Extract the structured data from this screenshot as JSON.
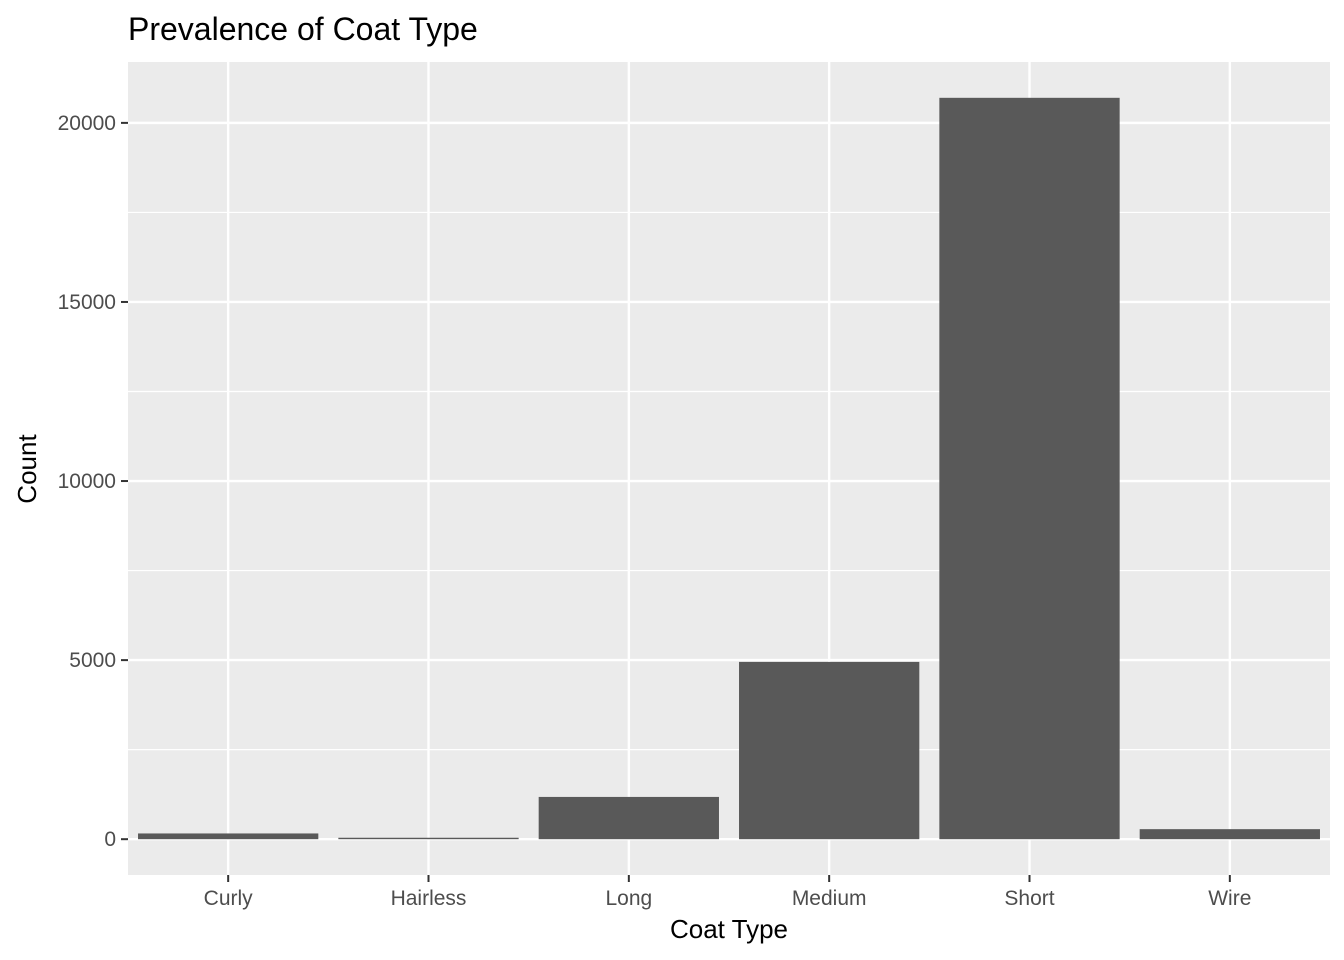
{
  "chart_data": {
    "type": "bar",
    "title": "Prevalence of Coat Type",
    "xlabel": "Coat Type",
    "ylabel": "Count",
    "categories": [
      "Curly",
      "Hairless",
      "Long",
      "Medium",
      "Short",
      "Wire"
    ],
    "values": [
      160,
      40,
      1180,
      4950,
      20700,
      280
    ],
    "ylim": [
      -1000,
      21700
    ],
    "yticks": [
      0,
      5000,
      10000,
      15000,
      20000
    ],
    "ytick_labels": [
      "0",
      "5000",
      "10000",
      "15000",
      "20000"
    ],
    "grid": true,
    "colors": {
      "bar": "#595959",
      "panel": "#ebebeb",
      "grid": "#ffffff",
      "tick_text": "#4d4d4d",
      "tick_mark": "#333333"
    }
  }
}
